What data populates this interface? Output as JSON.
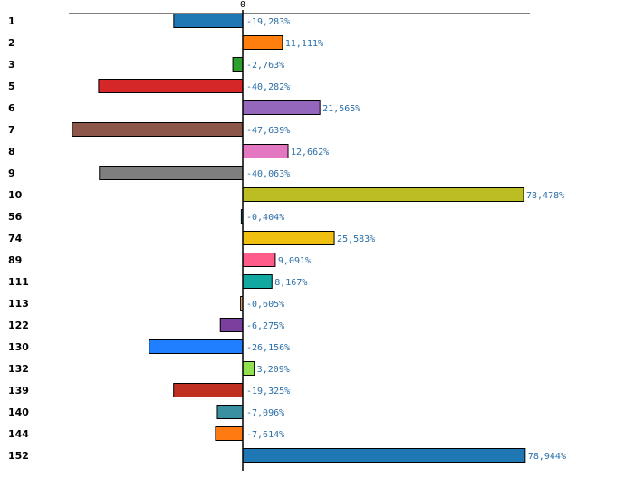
{
  "chart_data": {
    "type": "bar",
    "orientation": "horizontal",
    "zero_label": "0",
    "xlim": [
      -48.5,
      80
    ],
    "categories": [
      "1",
      "2",
      "3",
      "5",
      "6",
      "7",
      "8",
      "9",
      "10",
      "56",
      "74",
      "89",
      "111",
      "113",
      "122",
      "130",
      "132",
      "139",
      "140",
      "144",
      "152"
    ],
    "values": [
      -19.283,
      11.111,
      -2.763,
      -40.282,
      21.565,
      -47.639,
      12.662,
      -40.063,
      78.478,
      -0.404,
      25.583,
      9.091,
      8.167,
      -0.605,
      -6.275,
      -26.156,
      3.209,
      -19.325,
      -7.096,
      -7.614,
      78.944
    ],
    "value_labels": [
      "-19,283%",
      "11,111%",
      "-2,763%",
      "-40,282%",
      "21,565%",
      "-47,639%",
      "12,662%",
      "-40,063%",
      "78,478%",
      "-0,404%",
      "25,583%",
      "9,091%",
      "8,167%",
      "-0,605%",
      "-6,275%",
      "-26,156%",
      "3,209%",
      "-19,325%",
      "-7,096%",
      "-7,614%",
      "78,944%"
    ],
    "colors": [
      "#1f77b4",
      "#ff7f0e",
      "#2ca02c",
      "#d62728",
      "#9467bd",
      "#8c564b",
      "#e377c2",
      "#7f7f7f",
      "#bcbd22",
      "#17becf",
      "#f0c010",
      "#ff5c8a",
      "#10a8a0",
      "#ffb070",
      "#7b3f9e",
      "#1f7fff",
      "#90e050",
      "#c03020",
      "#3a90a0",
      "#ff7a10",
      "#1f77b4"
    ],
    "grid": false,
    "legend": "none"
  }
}
